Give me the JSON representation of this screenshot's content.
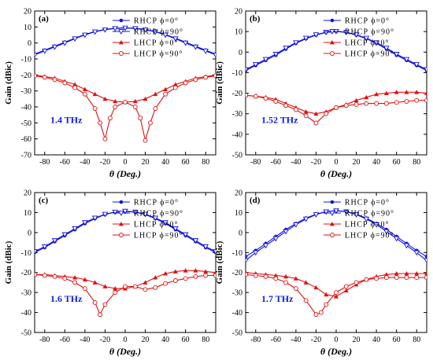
{
  "chart_data": [
    {
      "type": "line",
      "panel_label": "(a)",
      "annotation": "1.4 THz",
      "xlabel": "θ (Deg.)",
      "ylabel": "Gain (dBic)",
      "xlim": [
        -90,
        90
      ],
      "ylim": [
        -70,
        20
      ],
      "xticks": [
        -80,
        -60,
        -40,
        -20,
        0,
        20,
        40,
        60,
        80
      ],
      "yticks": [
        -70,
        -60,
        -50,
        -40,
        -30,
        -20,
        -10,
        0,
        10,
        20
      ],
      "grid": false,
      "legend_position": "top-right",
      "series": [
        {
          "name": "RHCP ϕ=0°",
          "color": "#1010e0",
          "marker": "filled-circle",
          "x": [
            -90,
            -80,
            -70,
            -60,
            -50,
            -40,
            -30,
            -20,
            -10,
            0,
            10,
            20,
            30,
            40,
            50,
            60,
            70,
            80,
            90
          ],
          "values": [
            -7,
            -4.5,
            -2,
            0.5,
            3,
            5.3,
            7.2,
            8.5,
            9.3,
            9.5,
            9.3,
            8.5,
            7.2,
            5.3,
            3,
            0.5,
            -2,
            -4.5,
            -7
          ]
        },
        {
          "name": "RHCP ϕ=90°",
          "color": "#1010e0",
          "marker": "open-triangle",
          "x": [
            -90,
            -80,
            -70,
            -60,
            -50,
            -40,
            -30,
            -20,
            -10,
            0,
            10,
            20,
            30,
            40,
            50,
            60,
            70,
            80,
            90
          ],
          "values": [
            -7.5,
            -5,
            -2.5,
            0,
            2.7,
            5,
            7,
            8.3,
            9.1,
            9.4,
            9.1,
            8.3,
            7,
            5,
            2.7,
            0,
            -2.5,
            -5,
            -7.5
          ]
        },
        {
          "name": "LHCP ϕ=0°",
          "color": "#e01010",
          "marker": "filled-triangle",
          "x": [
            -90,
            -80,
            -70,
            -60,
            -50,
            -40,
            -30,
            -20,
            -10,
            0,
            10,
            20,
            30,
            40,
            50,
            60,
            70,
            80,
            90
          ],
          "values": [
            -20,
            -21,
            -22,
            -24,
            -26,
            -29,
            -32,
            -35,
            -36.5,
            -37,
            -36.5,
            -35,
            -32,
            -29,
            -26,
            -24,
            -22,
            -21,
            -20
          ]
        },
        {
          "name": "LHCP ϕ=90°",
          "color": "#e01010",
          "marker": "open-circle",
          "x": [
            -90,
            -80,
            -70,
            -60,
            -50,
            -40,
            -30,
            -25,
            -20,
            -15,
            -10,
            0,
            10,
            15,
            20,
            25,
            30,
            40,
            50,
            60,
            70,
            80,
            90
          ],
          "values": [
            -20.5,
            -21.5,
            -23,
            -25,
            -28,
            -32,
            -41,
            -50,
            -60,
            -47,
            -40,
            -37,
            -40,
            -47,
            -61,
            -50,
            -41,
            -32,
            -28,
            -25,
            -23,
            -21.5,
            -20.5
          ]
        }
      ]
    },
    {
      "type": "line",
      "panel_label": "(b)",
      "annotation": "1.52 THz",
      "xlabel": "θ (Deg.)",
      "ylabel": "Gain (dBic)",
      "xlim": [
        -90,
        90
      ],
      "ylim": [
        -50,
        20
      ],
      "xticks": [
        -80,
        -60,
        -40,
        -20,
        0,
        20,
        40,
        60,
        80
      ],
      "yticks": [
        -50,
        -40,
        -30,
        -20,
        -10,
        0,
        10,
        20
      ],
      "grid": false,
      "legend_position": "top-right",
      "series": [
        {
          "name": "RHCP ϕ=0°",
          "color": "#1010e0",
          "marker": "filled-circle",
          "x": [
            -90,
            -80,
            -70,
            -60,
            -50,
            -40,
            -30,
            -20,
            -10,
            0,
            10,
            20,
            30,
            40,
            50,
            60,
            70,
            80,
            90
          ],
          "values": [
            -9,
            -6.5,
            -4,
            -1.5,
            1.5,
            4.3,
            6.5,
            8.3,
            9.6,
            10,
            9.6,
            8.3,
            6.5,
            4.3,
            1.5,
            -1.5,
            -4,
            -6.5,
            -9
          ]
        },
        {
          "name": "RHCP ϕ=90°",
          "color": "#1010e0",
          "marker": "open-triangle",
          "x": [
            -90,
            -80,
            -70,
            -60,
            -50,
            -40,
            -30,
            -20,
            -10,
            0,
            10,
            20,
            30,
            40,
            50,
            60,
            70,
            80,
            90
          ],
          "values": [
            -8.5,
            -6,
            -3.5,
            -1,
            2,
            4.6,
            6.8,
            8.5,
            9.7,
            10.1,
            9.7,
            8.5,
            6.8,
            4.6,
            2,
            -1,
            -3.5,
            -6,
            -8.5
          ]
        },
        {
          "name": "LHCP ϕ=0°",
          "color": "#e01010",
          "marker": "filled-triangle",
          "x": [
            -90,
            -80,
            -70,
            -60,
            -50,
            -40,
            -30,
            -20,
            -10,
            0,
            10,
            20,
            30,
            40,
            50,
            60,
            70,
            80,
            90
          ],
          "values": [
            -21,
            -21.5,
            -22,
            -23,
            -25,
            -27,
            -29,
            -30,
            -29,
            -27,
            -25.5,
            -23.5,
            -22,
            -20.5,
            -20,
            -19.5,
            -19.5,
            -19.5,
            -20
          ]
        },
        {
          "name": "LHCP ϕ=90°",
          "color": "#e01010",
          "marker": "open-circle",
          "x": [
            -90,
            -80,
            -70,
            -60,
            -50,
            -40,
            -30,
            -20,
            -10,
            0,
            10,
            20,
            30,
            40,
            50,
            60,
            70,
            80,
            90
          ],
          "values": [
            -21,
            -21.5,
            -22.5,
            -24,
            -26,
            -28,
            -31,
            -34.5,
            -30,
            -27,
            -26,
            -25.5,
            -25,
            -25,
            -25,
            -24.5,
            -24,
            -23.5,
            -23.5
          ]
        }
      ]
    },
    {
      "type": "line",
      "panel_label": "(c)",
      "annotation": "1.6 THz",
      "xlabel": "θ (Deg.)",
      "ylabel": "Gain (dBic)",
      "xlim": [
        -90,
        90
      ],
      "ylim": [
        -50,
        20
      ],
      "xticks": [
        -80,
        -60,
        -40,
        -20,
        0,
        20,
        40,
        60,
        80
      ],
      "yticks": [
        -50,
        -40,
        -30,
        -20,
        -10,
        0,
        10,
        20
      ],
      "grid": false,
      "legend_position": "top-right",
      "series": [
        {
          "name": "RHCP ϕ=0°",
          "color": "#1010e0",
          "marker": "filled-circle",
          "x": [
            -90,
            -80,
            -70,
            -60,
            -50,
            -40,
            -30,
            -20,
            -10,
            0,
            10,
            20,
            30,
            40,
            50,
            60,
            70,
            80,
            90
          ],
          "values": [
            -10,
            -7.5,
            -4.5,
            -1.5,
            1.5,
            4.5,
            7,
            9,
            10.2,
            10.6,
            10.2,
            9,
            7,
            4.5,
            1.5,
            -1.5,
            -4.5,
            -7.5,
            -10
          ]
        },
        {
          "name": "RHCP ϕ=90°",
          "color": "#1010e0",
          "marker": "open-triangle",
          "x": [
            -90,
            -80,
            -70,
            -60,
            -50,
            -40,
            -30,
            -20,
            -10,
            0,
            10,
            20,
            30,
            40,
            50,
            60,
            70,
            80,
            90
          ],
          "values": [
            -9.5,
            -7,
            -4,
            -1,
            2,
            5,
            7.3,
            9.2,
            10.3,
            10.7,
            10.3,
            9.2,
            7.3,
            5,
            2,
            -1,
            -4,
            -7,
            -9.5
          ]
        },
        {
          "name": "LHCP ϕ=0°",
          "color": "#e01010",
          "marker": "filled-triangle",
          "x": [
            -90,
            -80,
            -70,
            -60,
            -50,
            -40,
            -30,
            -20,
            -10,
            0,
            10,
            20,
            30,
            40,
            50,
            60,
            70,
            80,
            90
          ],
          "values": [
            -21,
            -21,
            -21.5,
            -22,
            -22.5,
            -23.5,
            -25,
            -27,
            -28,
            -28,
            -27,
            -25,
            -22.5,
            -20.5,
            -19.5,
            -19,
            -19,
            -19.5,
            -20
          ]
        },
        {
          "name": "LHCP ϕ=90°",
          "color": "#e01010",
          "marker": "open-circle",
          "x": [
            -90,
            -80,
            -70,
            -60,
            -50,
            -40,
            -30,
            -25,
            -20,
            -10,
            0,
            10,
            20,
            30,
            40,
            50,
            60,
            70,
            80,
            90
          ],
          "values": [
            -21,
            -21.5,
            -22,
            -23,
            -25,
            -28,
            -35,
            -41,
            -36,
            -30,
            -27,
            -27,
            -28.5,
            -27.5,
            -25.5,
            -24,
            -23,
            -22,
            -21.5,
            -21.5
          ]
        }
      ]
    },
    {
      "type": "line",
      "panel_label": "(d)",
      "annotation": "1.7 THz",
      "xlabel": "θ (Deg.)",
      "ylabel": "Gain (dBic)",
      "xlim": [
        -90,
        90
      ],
      "ylim": [
        -50,
        20
      ],
      "xticks": [
        -80,
        -60,
        -40,
        -20,
        0,
        20,
        40,
        60,
        80
      ],
      "yticks": [
        -50,
        -40,
        -30,
        -20,
        -10,
        0,
        10,
        20
      ],
      "grid": false,
      "legend_position": "top-right",
      "series": [
        {
          "name": "RHCP ϕ=0°",
          "color": "#1010e0",
          "marker": "filled-circle",
          "x": [
            -90,
            -80,
            -70,
            -60,
            -50,
            -40,
            -30,
            -20,
            -10,
            0,
            10,
            20,
            30,
            40,
            50,
            60,
            70,
            80,
            90
          ],
          "values": [
            -12,
            -9,
            -5.5,
            -2,
            1.5,
            4.5,
            7.2,
            9.2,
            10.5,
            11,
            10.5,
            9.2,
            7.2,
            4.5,
            1.5,
            -2,
            -5.5,
            -9,
            -12
          ]
        },
        {
          "name": "RHCP ϕ=90°",
          "color": "#1010e0",
          "marker": "open-triangle",
          "x": [
            -90,
            -80,
            -70,
            -60,
            -50,
            -40,
            -30,
            -20,
            -10,
            0,
            10,
            20,
            30,
            40,
            50,
            60,
            70,
            80,
            90
          ],
          "values": [
            -14,
            -10,
            -6.5,
            -3,
            0.5,
            4,
            6.8,
            9,
            10.4,
            10.9,
            10.4,
            9,
            6.8,
            4,
            0.5,
            -3,
            -6.5,
            -10,
            -14
          ]
        },
        {
          "name": "LHCP ϕ=0°",
          "color": "#e01010",
          "marker": "filled-triangle",
          "x": [
            -90,
            -80,
            -70,
            -60,
            -50,
            -40,
            -30,
            -20,
            -10,
            0,
            10,
            20,
            30,
            40,
            50,
            60,
            70,
            80,
            90
          ],
          "values": [
            -20,
            -20.5,
            -21,
            -21.5,
            -22,
            -23,
            -25,
            -27.5,
            -31,
            -32,
            -29,
            -26,
            -23.5,
            -22,
            -21,
            -20.5,
            -20.5,
            -20.5,
            -20.5
          ]
        },
        {
          "name": "LHCP ϕ=90°",
          "color": "#e01010",
          "marker": "open-circle",
          "x": [
            -90,
            -80,
            -70,
            -60,
            -50,
            -40,
            -30,
            -20,
            -15,
            -10,
            0,
            10,
            20,
            30,
            40,
            50,
            60,
            70,
            80,
            90
          ],
          "values": [
            -21,
            -21.5,
            -22,
            -23,
            -25,
            -28,
            -34,
            -41,
            -40,
            -36,
            -30,
            -27,
            -25,
            -23.5,
            -23,
            -22.5,
            -22.5,
            -22.5,
            -22.5,
            -22.5
          ]
        }
      ]
    }
  ]
}
